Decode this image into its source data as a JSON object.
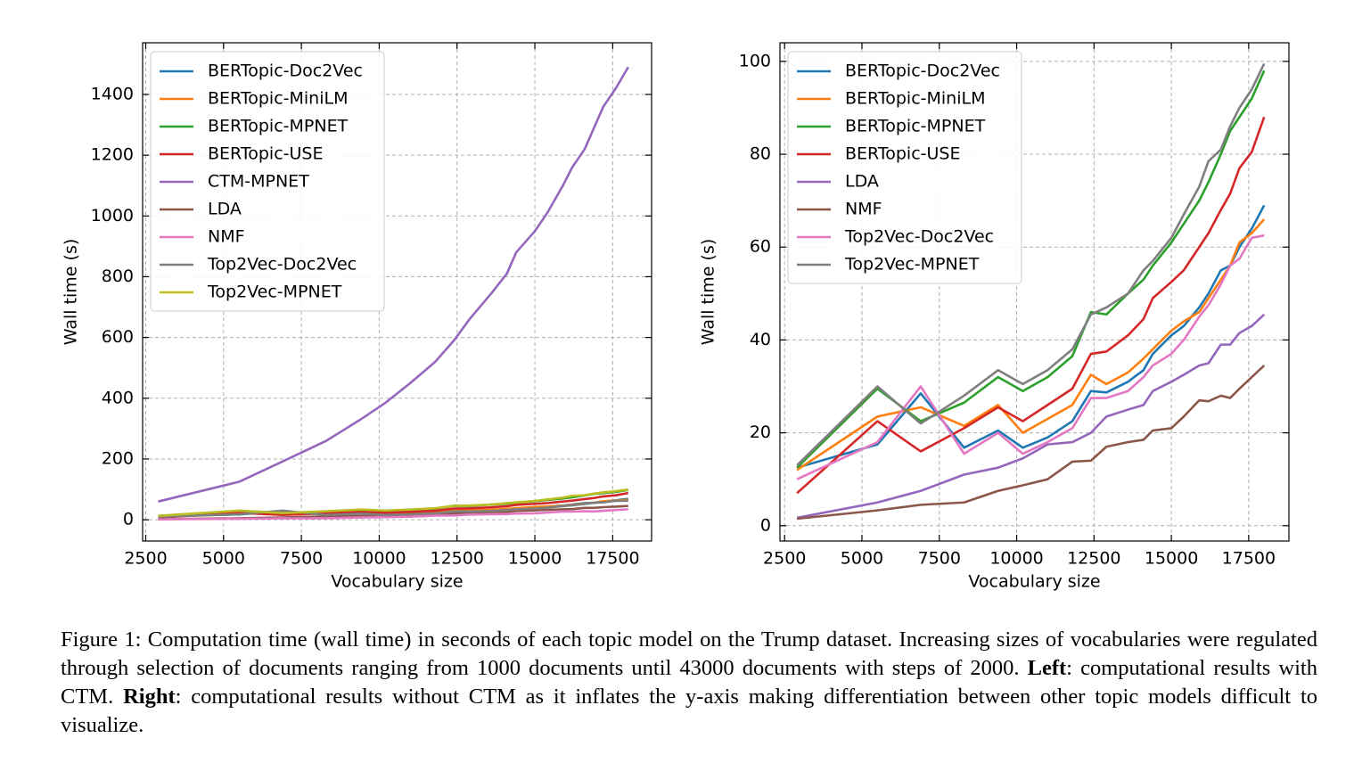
{
  "chart_data": [
    {
      "type": "line",
      "xlabel": "Vocabulary size",
      "ylabel": "Wall time (s)",
      "x": [
        2900,
        5500,
        6900,
        8300,
        9400,
        10200,
        11000,
        11800,
        12400,
        12900,
        13600,
        14100,
        14400,
        15000,
        15400,
        15900,
        16200,
        16600,
        16900,
        17200,
        17600,
        18000
      ],
      "xlim": [
        2400,
        18750
      ],
      "ylim": [
        -70,
        1570
      ],
      "xticks": [
        2500,
        5000,
        7500,
        10000,
        12500,
        15000,
        17500
      ],
      "yticks": [
        0,
        200,
        400,
        600,
        800,
        1000,
        1200,
        1400
      ],
      "grid": true,
      "legend": "upper left",
      "series": [
        {
          "name": "BERTopic-Doc2Vec",
          "color": "#1f77b4",
          "values": [
            12.5,
            17.5,
            28.5,
            16.8,
            20.5,
            16.8,
            19,
            22.5,
            29,
            28.7,
            31,
            33.5,
            37,
            41,
            43,
            47,
            50,
            55,
            56,
            60,
            64,
            69
          ]
        },
        {
          "name": "BERTopic-MiniLM",
          "color": "#ff7f0e",
          "values": [
            12,
            23.5,
            25.5,
            21.5,
            26,
            20,
            23,
            26,
            32.5,
            30.5,
            33,
            36,
            38,
            42,
            44,
            46,
            49,
            53,
            56,
            61,
            63,
            66
          ]
        },
        {
          "name": "BERTopic-MPNET",
          "color": "#2ca02c",
          "values": [
            12.5,
            29.5,
            22.5,
            26.5,
            32,
            29,
            32,
            36.5,
            46,
            45.5,
            50,
            53,
            56,
            61,
            65,
            70,
            74,
            80,
            85,
            88,
            92,
            98
          ]
        },
        {
          "name": "BERTopic-USE",
          "color": "#d62728",
          "values": [
            7,
            22.5,
            16,
            21,
            25.5,
            22.5,
            26,
            29.5,
            37,
            37.5,
            41,
            44.5,
            49,
            52.5,
            55,
            60,
            63,
            68,
            71.5,
            77,
            80.5,
            88
          ]
        },
        {
          "name": "CTM-MPNET",
          "color": "#9467bd",
          "values": [
            60,
            125,
            192,
            260,
            330,
            385,
            450,
            520,
            590,
            660,
            745,
            810,
            880,
            950,
            1010,
            1100,
            1160,
            1220,
            1290,
            1360,
            1420,
            1490
          ]
        },
        {
          "name": "LDA",
          "color": "#8c564b",
          "values": [
            1.7,
            5,
            7.5,
            11,
            12.5,
            14.5,
            17.5,
            18,
            20,
            23.5,
            25,
            26,
            29,
            31,
            32.5,
            34.5,
            35,
            39,
            39,
            41.5,
            43,
            45.5
          ]
        },
        {
          "name": "NMF",
          "color": "#e377c2",
          "values": [
            1.5,
            3.3,
            4.5,
            5,
            7.5,
            8.7,
            10,
            13.8,
            14,
            17,
            18,
            18.5,
            20.5,
            21,
            23.5,
            27,
            26.8,
            28,
            27.5,
            29.5,
            32,
            34.5
          ]
        },
        {
          "name": "Top2Vec-Doc2Vec",
          "color": "#7f7f7f",
          "values": [
            10,
            18,
            30,
            15.5,
            20,
            15.5,
            18,
            21,
            27.5,
            27.5,
            29,
            32,
            34.5,
            37,
            40,
            45,
            47.5,
            52,
            56,
            57.5,
            62,
            62.5
          ]
        },
        {
          "name": "Top2Vec-MPNET",
          "color": "#bcbd22",
          "values": [
            13,
            30,
            22,
            28,
            33.5,
            30.5,
            33.5,
            38,
            45.5,
            47,
            50,
            55,
            57,
            62,
            67,
            73,
            78.5,
            81,
            86,
            90,
            94,
            99.5
          ]
        }
      ]
    },
    {
      "type": "line",
      "xlabel": "Vocabulary size",
      "ylabel": "Wall time (s)",
      "x": [
        2900,
        5500,
        6900,
        8300,
        9400,
        10200,
        11000,
        11800,
        12400,
        12900,
        13600,
        14100,
        14400,
        15000,
        15400,
        15900,
        16200,
        16600,
        16900,
        17200,
        17600,
        18000
      ],
      "xlim": [
        2350,
        18800
      ],
      "ylim": [
        -3.3,
        104
      ],
      "xticks": [
        2500,
        5000,
        7500,
        10000,
        12500,
        15000,
        17500
      ],
      "yticks": [
        0,
        20,
        40,
        60,
        80,
        100
      ],
      "grid": true,
      "legend": "upper left",
      "series": [
        {
          "name": "BERTopic-Doc2Vec",
          "color": "#1f77b4",
          "values": [
            12.5,
            17.5,
            28.5,
            16.8,
            20.5,
            16.8,
            19,
            22.5,
            29,
            28.7,
            31,
            33.5,
            37,
            41,
            43,
            47,
            50,
            55,
            56,
            60,
            64,
            69
          ]
        },
        {
          "name": "BERTopic-MiniLM",
          "color": "#ff7f0e",
          "values": [
            12,
            23.5,
            25.5,
            21.5,
            26,
            20,
            23,
            26,
            32.5,
            30.5,
            33,
            36,
            38,
            42,
            44,
            46,
            49,
            53,
            56,
            61,
            63,
            66
          ]
        },
        {
          "name": "BERTopic-MPNET",
          "color": "#2ca02c",
          "values": [
            12.5,
            29.5,
            22.5,
            26.5,
            32,
            29,
            32,
            36.5,
            46,
            45.5,
            50,
            53,
            56,
            61,
            65,
            70,
            74,
            80,
            85,
            88,
            92,
            98
          ]
        },
        {
          "name": "BERTopic-USE",
          "color": "#d62728",
          "values": [
            7,
            22.5,
            16,
            21,
            25.5,
            22.5,
            26,
            29.5,
            37,
            37.5,
            41,
            44.5,
            49,
            52.5,
            55,
            60,
            63,
            68,
            71.5,
            77,
            80.5,
            88
          ]
        },
        {
          "name": "LDA",
          "color": "#9467bd",
          "values": [
            1.7,
            5,
            7.5,
            11,
            12.5,
            14.5,
            17.5,
            18,
            20,
            23.5,
            25,
            26,
            29,
            31,
            32.5,
            34.5,
            35,
            39,
            39,
            41.5,
            43,
            45.5
          ]
        },
        {
          "name": "NMF",
          "color": "#8c564b",
          "values": [
            1.5,
            3.3,
            4.5,
            5,
            7.5,
            8.7,
            10,
            13.8,
            14,
            17,
            18,
            18.5,
            20.5,
            21,
            23.5,
            27,
            26.8,
            28,
            27.5,
            29.5,
            32,
            34.5
          ]
        },
        {
          "name": "Top2Vec-Doc2Vec",
          "color": "#e377c2",
          "values": [
            10,
            18,
            30,
            15.5,
            20,
            15.5,
            18,
            21,
            27.5,
            27.5,
            29,
            32,
            34.5,
            37,
            40,
            45,
            47.5,
            52,
            56,
            57.5,
            62,
            62.5
          ]
        },
        {
          "name": "Top2Vec-MPNET",
          "color": "#7f7f7f",
          "values": [
            13,
            30,
            22,
            28,
            33.5,
            30.5,
            33.5,
            38,
            45.5,
            47,
            50,
            55,
            57,
            62,
            67,
            73,
            78.5,
            81,
            86,
            90,
            94,
            99.5
          ]
        }
      ]
    }
  ],
  "caption": [
    {
      "text": "Figure 1: Computation time (wall time) in seconds of each topic model on the Trump dataset. Increasing sizes of vocabularies were regulated through selection of documents ranging from 1000 documents until 43000 documents with steps of 2000. ",
      "bold": false
    },
    {
      "text": "Left",
      "bold": true
    },
    {
      "text": ": computational results with CTM. ",
      "bold": false
    },
    {
      "text": "Right",
      "bold": true
    },
    {
      "text": ": computational results without CTM as it inflates the y-axis making differentiation between other topic models difficult to visualize.",
      "bold": false
    }
  ]
}
